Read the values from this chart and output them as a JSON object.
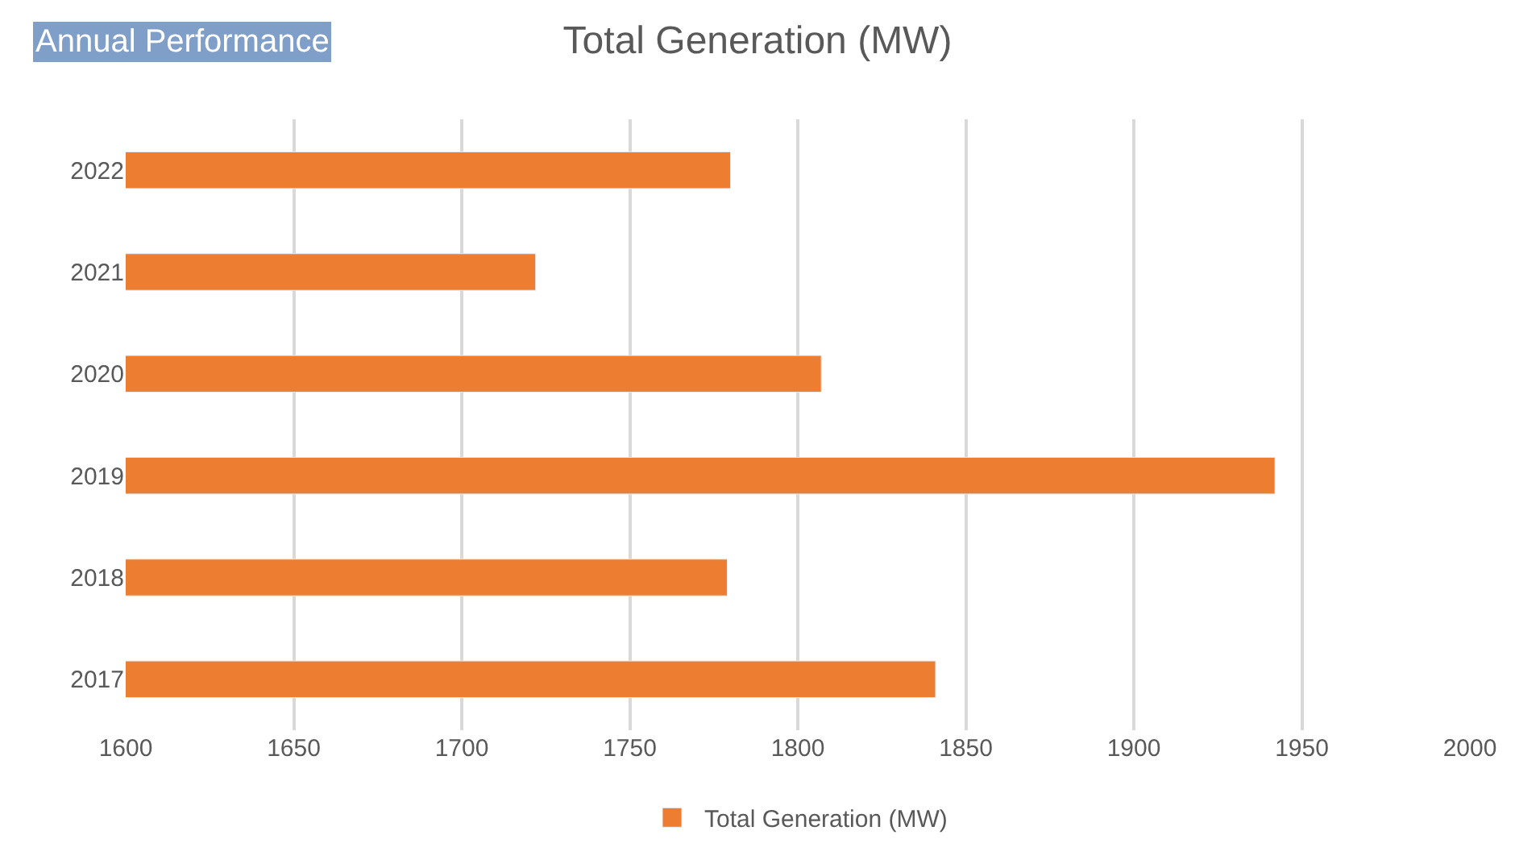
{
  "chart_data": {
    "type": "bar",
    "orientation": "horizontal",
    "title": "Total Generation (MW)",
    "annotations": [
      "Annual Performance"
    ],
    "categories": [
      "2022",
      "2021",
      "2020",
      "2019",
      "2018",
      "2017"
    ],
    "series": [
      {
        "name": "Total Generation (MW)",
        "color": "#ed7d31",
        "values": [
          1780,
          1722,
          1807,
          1942,
          1779,
          1841
        ]
      }
    ],
    "xlim": [
      1600,
      2000
    ],
    "xticks": [
      1600,
      1650,
      1700,
      1750,
      1800,
      1850,
      1900,
      1950,
      2000
    ],
    "grid": "x",
    "legend": "bottom"
  }
}
